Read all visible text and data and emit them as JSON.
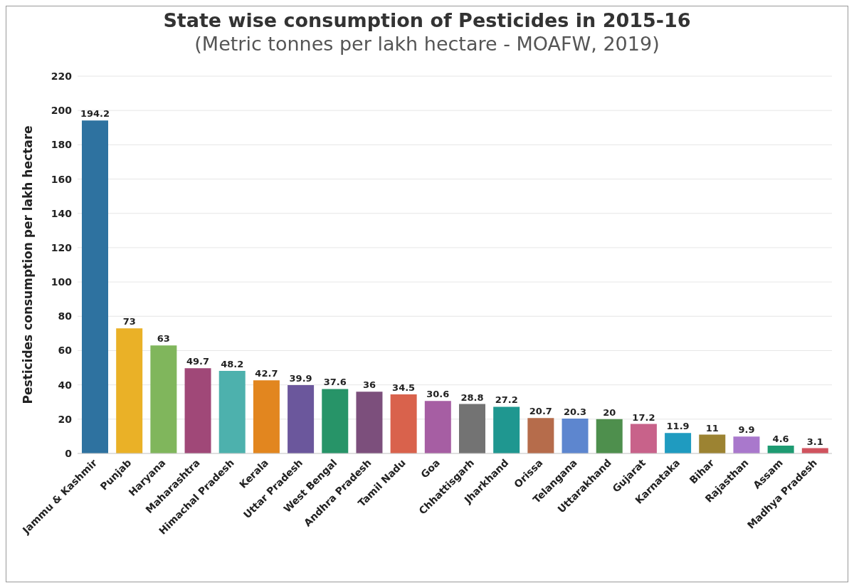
{
  "chart_data": {
    "type": "bar",
    "title": "State wise consumption of Pesticides in 2015-16",
    "subtitle": "(Metric tonnes per lakh hectare - MOAFW, 2019)",
    "ylabel": "Pesticides consumption per lakh hectare",
    "categories": [
      "Jammu & Kashmir",
      "Punjab",
      "Haryana",
      "Maharashtra",
      "Himachal Pradesh",
      "Kerala",
      "Uttar Pradesh",
      "West Bengal",
      "Andhra Pradesh",
      "Tamil Nadu",
      "Goa",
      "Chhattisgarh",
      "Jharkhand",
      "Orissa",
      "Telangana",
      "Uttarakhand",
      "Gujarat",
      "Karnataka",
      "Bihar",
      "Rajasthan",
      "Assam",
      "Madhya Pradesh"
    ],
    "values": [
      194.2,
      73,
      63,
      49.7,
      48.2,
      42.7,
      39.9,
      37.6,
      36,
      34.5,
      30.6,
      28.8,
      27.2,
      20.7,
      20.3,
      20,
      17.2,
      11.9,
      11,
      9.9,
      4.6,
      3.1
    ],
    "colors": [
      "#2e72a0",
      "#eab127",
      "#80b65c",
      "#a04878",
      "#4db1ad",
      "#e2861f",
      "#6b579c",
      "#279468",
      "#7c4f7c",
      "#d9624c",
      "#a65ea3",
      "#737373",
      "#1f9790",
      "#b66c4b",
      "#5d86cf",
      "#4e8f4d",
      "#c8628a",
      "#1f9bc0",
      "#9c8332",
      "#a978cc",
      "#1e9b72",
      "#d0535e"
    ],
    "ylim": [
      0,
      220
    ],
    "yticks": [
      0,
      20,
      40,
      60,
      80,
      100,
      120,
      140,
      160,
      180,
      200,
      220
    ],
    "grid": "y",
    "data_labels": true
  }
}
